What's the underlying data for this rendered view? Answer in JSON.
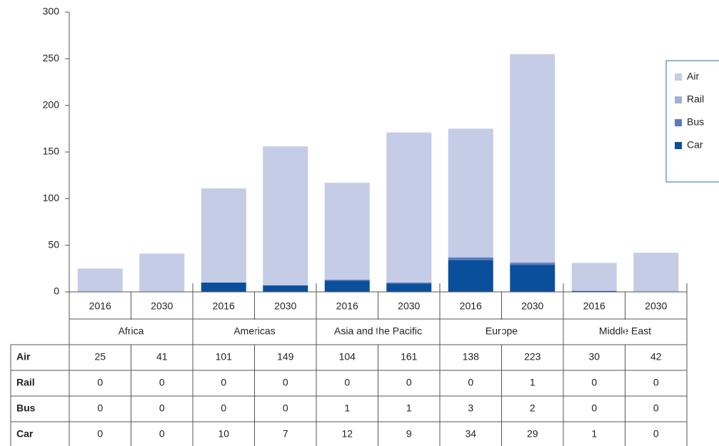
{
  "chart_data": {
    "type": "stacked_bar",
    "categories": [
      "2016",
      "2030",
      "2016",
      "2030",
      "2016",
      "2030",
      "2016",
      "2030",
      "2016",
      "2030"
    ],
    "groups": [
      "Africa",
      "Americas",
      "Asia and the Pacific",
      "Europe",
      "Middle East"
    ],
    "series": [
      {
        "name": "Air",
        "color": "#c5cce6",
        "values": [
          25,
          41,
          101,
          149,
          104,
          161,
          138,
          223,
          30,
          42
        ]
      },
      {
        "name": "Rail",
        "color": "#9fb0d9",
        "values": [
          0,
          0,
          0,
          0,
          0,
          0,
          0,
          1,
          0,
          0
        ]
      },
      {
        "name": "Bus",
        "color": "#5b7bbf",
        "values": [
          0,
          0,
          0,
          0,
          1,
          1,
          3,
          2,
          0,
          0
        ]
      },
      {
        "name": "Car",
        "color": "#0a4f9c",
        "values": [
          0,
          0,
          10,
          7,
          12,
          9,
          34,
          29,
          1,
          0
        ]
      }
    ],
    "stack_order": [
      "Car",
      "Bus",
      "Rail",
      "Air"
    ],
    "ylim": [
      0,
      300
    ],
    "yticks": [
      0,
      50,
      100,
      150,
      200,
      250,
      300
    ],
    "legend": "right",
    "grid": false
  }
}
